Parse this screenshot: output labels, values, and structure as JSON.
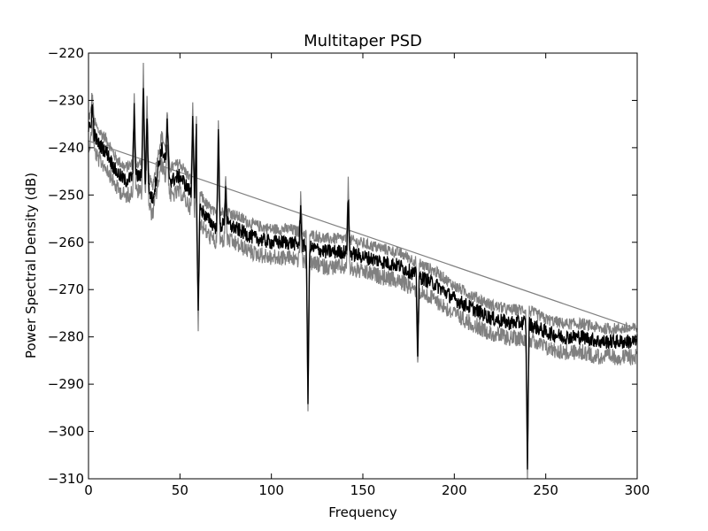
{
  "chart_data": {
    "type": "line",
    "title": "Multitaper PSD",
    "xlabel": "Frequency",
    "ylabel": "Power Spectral Density (dB)",
    "xlim": [
      0,
      300
    ],
    "ylim": [
      -310,
      -220
    ],
    "xticks": [
      0,
      50,
      100,
      150,
      200,
      250,
      300
    ],
    "yticks": [
      -220,
      -230,
      -240,
      -250,
      -260,
      -270,
      -280,
      -290,
      -300,
      -310
    ],
    "grid": false,
    "legend": "none",
    "colors": {
      "mean": "#000000",
      "band": "#808080"
    },
    "series": [
      {
        "x": [
          0,
          2,
          5,
          10,
          15,
          20,
          25,
          30,
          35,
          40,
          45,
          50,
          55,
          60,
          65,
          70,
          75,
          80,
          90,
          100,
          110,
          120,
          130,
          140,
          150,
          160,
          170,
          180,
          190,
          200,
          210,
          220,
          230,
          240,
          250,
          260,
          270,
          280,
          290,
          300
        ],
        "values": [
          -236,
          -236,
          -239,
          -241,
          -245,
          -247,
          -246,
          -246,
          -251,
          -240,
          -247,
          -246,
          -249,
          -252,
          -255,
          -257,
          -256,
          -257,
          -259,
          -260,
          -260,
          -261,
          -262,
          -262,
          -263,
          -264,
          -265,
          -267,
          -269,
          -272,
          -274,
          -276,
          -277,
          -277,
          -279,
          -280,
          -280,
          -281,
          -281,
          -281
        ]
      }
    ],
    "peaks": [
      {
        "x": 2,
        "y": -231
      },
      {
        "x": 25,
        "y": -232
      },
      {
        "x": 30,
        "y": -226
      },
      {
        "x": 32,
        "y": -233
      },
      {
        "x": 43,
        "y": -235
      },
      {
        "x": 57,
        "y": -233
      },
      {
        "x": 59,
        "y": -236
      },
      {
        "x": 71,
        "y": -236
      },
      {
        "x": 75,
        "y": -249
      },
      {
        "x": 116,
        "y": -253
      },
      {
        "x": 142,
        "y": -250
      }
    ],
    "dips": [
      {
        "x": 60,
        "y": -275
      },
      {
        "x": 120,
        "y": -294
      },
      {
        "x": 180,
        "y": -283
      },
      {
        "x": 240,
        "y": -307
      }
    ]
  }
}
